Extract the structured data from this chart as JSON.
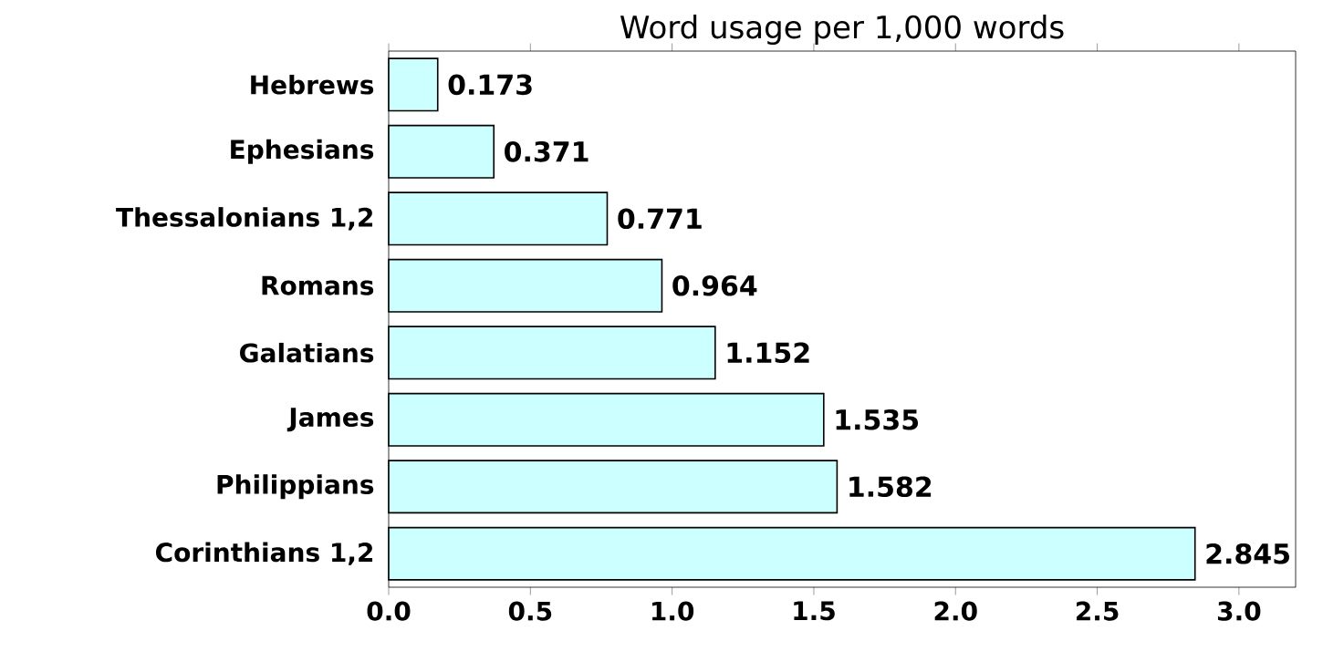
{
  "chart_data": {
    "type": "bar",
    "orientation": "horizontal",
    "title": "Word usage per 1,000 words",
    "categories": [
      "Hebrews",
      "Ephesians",
      "Thessalonians 1,2",
      "Romans",
      "Galatians",
      "James",
      "Philippians",
      "Corinthians 1,2"
    ],
    "values": [
      0.173,
      0.371,
      0.771,
      0.964,
      1.152,
      1.535,
      1.582,
      2.845
    ],
    "color": "#ccffff",
    "data_labels": true,
    "grid": false,
    "xlim": [
      0,
      3.2
    ],
    "xticks": [
      {
        "value": 0,
        "label": "0.0"
      },
      {
        "value": 0.5,
        "label": "0.5"
      },
      {
        "value": 1,
        "label": "1.0"
      },
      {
        "value": 1.5,
        "label": "1.5"
      },
      {
        "value": 2,
        "label": "2.0"
      },
      {
        "value": 2.5,
        "label": "2.5"
      },
      {
        "value": 3,
        "label": "3.0"
      }
    ]
  }
}
